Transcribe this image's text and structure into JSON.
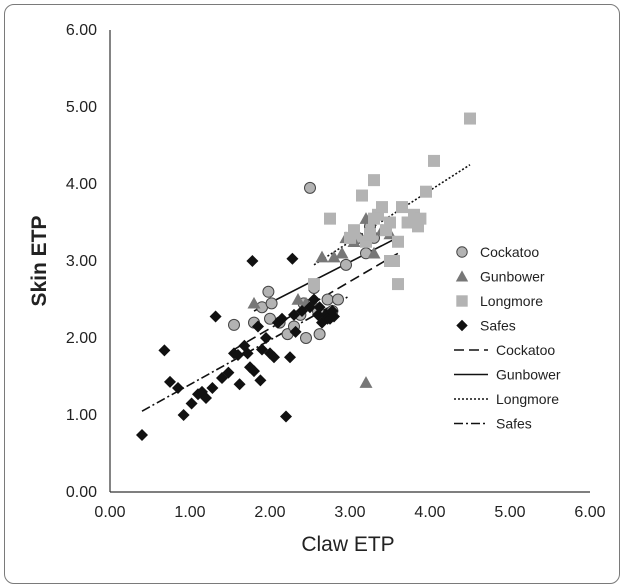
{
  "chart_data": {
    "type": "scatter",
    "xlabel": "Claw ETP",
    "ylabel": "Skin ETP",
    "xlim": [
      0,
      6
    ],
    "ylim": [
      0,
      6
    ],
    "xticks": [
      "0.00",
      "1.00",
      "2.00",
      "3.00",
      "4.00",
      "5.00",
      "6.00"
    ],
    "yticks": [
      "0.00",
      "1.00",
      "2.00",
      "3.00",
      "4.00",
      "5.00",
      "6.00"
    ],
    "grid": false,
    "legend_position": "right",
    "series": [
      {
        "name": "Cockatoo",
        "marker": "circle",
        "color": "#b3b3b3",
        "points": [
          [
            1.55,
            2.17
          ],
          [
            1.9,
            2.4
          ],
          [
            1.98,
            2.6
          ],
          [
            2.02,
            2.45
          ],
          [
            2.12,
            2.2
          ],
          [
            2.0,
            2.25
          ],
          [
            2.22,
            2.05
          ],
          [
            2.3,
            2.15
          ],
          [
            2.38,
            2.3
          ],
          [
            2.42,
            2.45
          ],
          [
            2.45,
            2.0
          ],
          [
            2.5,
            3.95
          ],
          [
            2.55,
            2.65
          ],
          [
            2.6,
            2.35
          ],
          [
            2.62,
            2.05
          ],
          [
            2.72,
            2.5
          ],
          [
            2.78,
            2.35
          ],
          [
            2.85,
            2.5
          ],
          [
            2.95,
            2.95
          ],
          [
            3.1,
            3.3
          ],
          [
            3.2,
            3.1
          ],
          [
            3.25,
            3.45
          ],
          [
            3.3,
            3.3
          ],
          [
            1.8,
            2.2
          ]
        ]
      },
      {
        "name": "Gunbower",
        "marker": "triangle",
        "color": "#777777",
        "points": [
          [
            1.8,
            2.45
          ],
          [
            2.35,
            2.5
          ],
          [
            2.45,
            2.45
          ],
          [
            2.55,
            2.45
          ],
          [
            2.65,
            3.05
          ],
          [
            2.8,
            3.05
          ],
          [
            2.9,
            3.1
          ],
          [
            2.95,
            3.3
          ],
          [
            3.05,
            3.25
          ],
          [
            3.2,
            3.55
          ],
          [
            3.3,
            3.1
          ],
          [
            3.4,
            3.4
          ],
          [
            3.5,
            3.35
          ],
          [
            3.2,
            1.42
          ]
        ]
      },
      {
        "name": "Longmore",
        "marker": "square",
        "color": "#b3b3b3",
        "points": [
          [
            2.55,
            2.7
          ],
          [
            2.75,
            3.55
          ],
          [
            3.0,
            3.3
          ],
          [
            3.05,
            3.4
          ],
          [
            3.15,
            3.85
          ],
          [
            3.2,
            3.25
          ],
          [
            3.25,
            3.35
          ],
          [
            3.3,
            4.05
          ],
          [
            3.35,
            3.6
          ],
          [
            3.4,
            3.7
          ],
          [
            3.45,
            3.4
          ],
          [
            3.5,
            3.5
          ],
          [
            3.55,
            3.0
          ],
          [
            3.6,
            2.7
          ],
          [
            3.6,
            3.25
          ],
          [
            3.65,
            3.7
          ],
          [
            3.72,
            3.5
          ],
          [
            3.8,
            3.6
          ],
          [
            3.88,
            3.55
          ],
          [
            3.85,
            3.45
          ],
          [
            3.95,
            3.9
          ],
          [
            4.05,
            4.3
          ],
          [
            4.5,
            4.85
          ],
          [
            3.5,
            3.0
          ],
          [
            3.3,
            3.55
          ]
        ]
      },
      {
        "name": "Safes",
        "marker": "diamond",
        "color": "#111111",
        "points": [
          [
            0.4,
            0.74
          ],
          [
            0.68,
            1.84
          ],
          [
            0.75,
            1.43
          ],
          [
            0.85,
            1.35
          ],
          [
            0.92,
            1.0
          ],
          [
            1.02,
            1.15
          ],
          [
            1.1,
            1.27
          ],
          [
            1.15,
            1.3
          ],
          [
            1.2,
            1.22
          ],
          [
            1.28,
            1.35
          ],
          [
            1.32,
            2.28
          ],
          [
            1.4,
            1.48
          ],
          [
            1.48,
            1.55
          ],
          [
            1.55,
            1.8
          ],
          [
            1.6,
            1.78
          ],
          [
            1.62,
            1.4
          ],
          [
            1.68,
            1.9
          ],
          [
            1.75,
            1.62
          ],
          [
            1.78,
            3.0
          ],
          [
            1.8,
            1.57
          ],
          [
            1.85,
            2.15
          ],
          [
            1.88,
            1.45
          ],
          [
            1.9,
            1.85
          ],
          [
            1.95,
            2.0
          ],
          [
            2.0,
            1.8
          ],
          [
            2.05,
            1.75
          ],
          [
            2.1,
            2.2
          ],
          [
            2.15,
            2.25
          ],
          [
            2.2,
            0.98
          ],
          [
            2.25,
            1.75
          ],
          [
            2.28,
            3.03
          ],
          [
            2.3,
            2.3
          ],
          [
            2.32,
            2.08
          ],
          [
            2.4,
            2.35
          ],
          [
            2.5,
            2.4
          ],
          [
            2.55,
            2.5
          ],
          [
            2.6,
            2.3
          ],
          [
            2.62,
            2.4
          ],
          [
            2.65,
            2.2
          ],
          [
            2.7,
            2.3
          ],
          [
            2.72,
            2.25
          ],
          [
            2.75,
            2.25
          ],
          [
            2.78,
            2.35
          ],
          [
            2.8,
            2.28
          ],
          [
            1.72,
            1.8
          ]
        ]
      }
    ],
    "trendlines": [
      {
        "name": "Cockatoo",
        "dash": "10,5",
        "x": [
          1.55,
          3.6
        ],
        "y": [
          1.85,
          3.1
        ]
      },
      {
        "name": "Gunbower",
        "dash": "",
        "x": [
          1.8,
          3.55
        ],
        "y": [
          2.35,
          3.28
        ]
      },
      {
        "name": "Longmore",
        "dash": "2,2",
        "x": [
          2.55,
          4.5
        ],
        "y": [
          2.95,
          4.25
        ]
      },
      {
        "name": "Safes",
        "dash": "9,3,2,3",
        "x": [
          0.4,
          3.0
        ],
        "y": [
          1.05,
          2.55
        ]
      }
    ]
  }
}
